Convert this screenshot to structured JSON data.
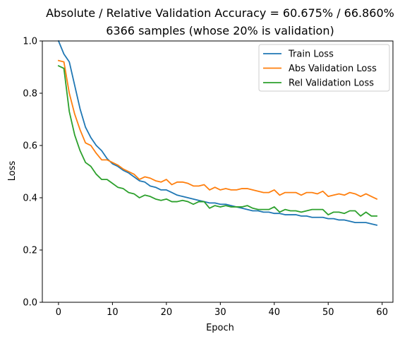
{
  "chart_data": {
    "type": "line",
    "title": "Absolute / Relative Validation Accuracy = 60.675% / 66.860%",
    "subtitle": "6366 samples (whose 20% is validation)",
    "xlabel": "Epoch",
    "ylabel": "Loss",
    "xlim": [
      -3,
      62
    ],
    "ylim": [
      0.0,
      1.0
    ],
    "xticks": [
      0,
      10,
      20,
      30,
      40,
      50,
      60
    ],
    "yticks": [
      0.0,
      0.2,
      0.4,
      0.6,
      0.8,
      1.0
    ],
    "xtick_labels": [
      "0",
      "10",
      "20",
      "30",
      "40",
      "50",
      "60"
    ],
    "ytick_labels": [
      "0.0",
      "0.2",
      "0.4",
      "0.6",
      "0.8",
      "1.0"
    ],
    "grid": false,
    "legend_position": "top-right",
    "x": [
      0,
      1,
      2,
      3,
      4,
      5,
      6,
      7,
      8,
      9,
      10,
      11,
      12,
      13,
      14,
      15,
      16,
      17,
      18,
      19,
      20,
      21,
      22,
      23,
      24,
      25,
      26,
      27,
      28,
      29,
      30,
      31,
      32,
      33,
      34,
      35,
      36,
      37,
      38,
      39,
      40,
      41,
      42,
      43,
      44,
      45,
      46,
      47,
      48,
      49,
      50,
      51,
      52,
      53,
      54,
      55,
      56,
      57,
      58,
      59
    ],
    "series": [
      {
        "name": "Train Loss",
        "color": "#1f77b4",
        "values": [
          1.0,
          0.95,
          0.92,
          0.83,
          0.74,
          0.67,
          0.63,
          0.6,
          0.58,
          0.55,
          0.53,
          0.52,
          0.505,
          0.495,
          0.48,
          0.465,
          0.46,
          0.445,
          0.44,
          0.43,
          0.43,
          0.42,
          0.41,
          0.405,
          0.4,
          0.395,
          0.39,
          0.385,
          0.38,
          0.38,
          0.375,
          0.375,
          0.37,
          0.365,
          0.36,
          0.355,
          0.35,
          0.35,
          0.345,
          0.345,
          0.34,
          0.34,
          0.335,
          0.335,
          0.335,
          0.33,
          0.33,
          0.325,
          0.325,
          0.325,
          0.32,
          0.32,
          0.315,
          0.315,
          0.31,
          0.305,
          0.305,
          0.305,
          0.3,
          0.295
        ]
      },
      {
        "name": "Abs Validation Loss",
        "color": "#ff7f0e",
        "values": [
          0.925,
          0.92,
          0.8,
          0.72,
          0.66,
          0.61,
          0.6,
          0.57,
          0.545,
          0.545,
          0.535,
          0.525,
          0.51,
          0.5,
          0.49,
          0.47,
          0.48,
          0.475,
          0.465,
          0.46,
          0.47,
          0.45,
          0.46,
          0.46,
          0.455,
          0.445,
          0.445,
          0.45,
          0.43,
          0.44,
          0.43,
          0.435,
          0.43,
          0.43,
          0.435,
          0.435,
          0.43,
          0.425,
          0.42,
          0.42,
          0.43,
          0.41,
          0.42,
          0.42,
          0.42,
          0.41,
          0.42,
          0.42,
          0.415,
          0.425,
          0.405,
          0.41,
          0.415,
          0.41,
          0.42,
          0.415,
          0.405,
          0.415,
          0.405,
          0.395
        ]
      },
      {
        "name": "Rel Validation Loss",
        "color": "#2ca02c",
        "values": [
          0.905,
          0.895,
          0.73,
          0.64,
          0.58,
          0.535,
          0.52,
          0.49,
          0.47,
          0.47,
          0.455,
          0.44,
          0.435,
          0.42,
          0.415,
          0.4,
          0.41,
          0.405,
          0.395,
          0.39,
          0.395,
          0.385,
          0.385,
          0.39,
          0.385,
          0.375,
          0.385,
          0.385,
          0.36,
          0.37,
          0.365,
          0.37,
          0.365,
          0.365,
          0.365,
          0.37,
          0.36,
          0.355,
          0.355,
          0.355,
          0.365,
          0.345,
          0.355,
          0.35,
          0.35,
          0.345,
          0.35,
          0.355,
          0.355,
          0.355,
          0.335,
          0.345,
          0.345,
          0.34,
          0.35,
          0.35,
          0.33,
          0.345,
          0.33,
          0.33
        ]
      }
    ]
  }
}
